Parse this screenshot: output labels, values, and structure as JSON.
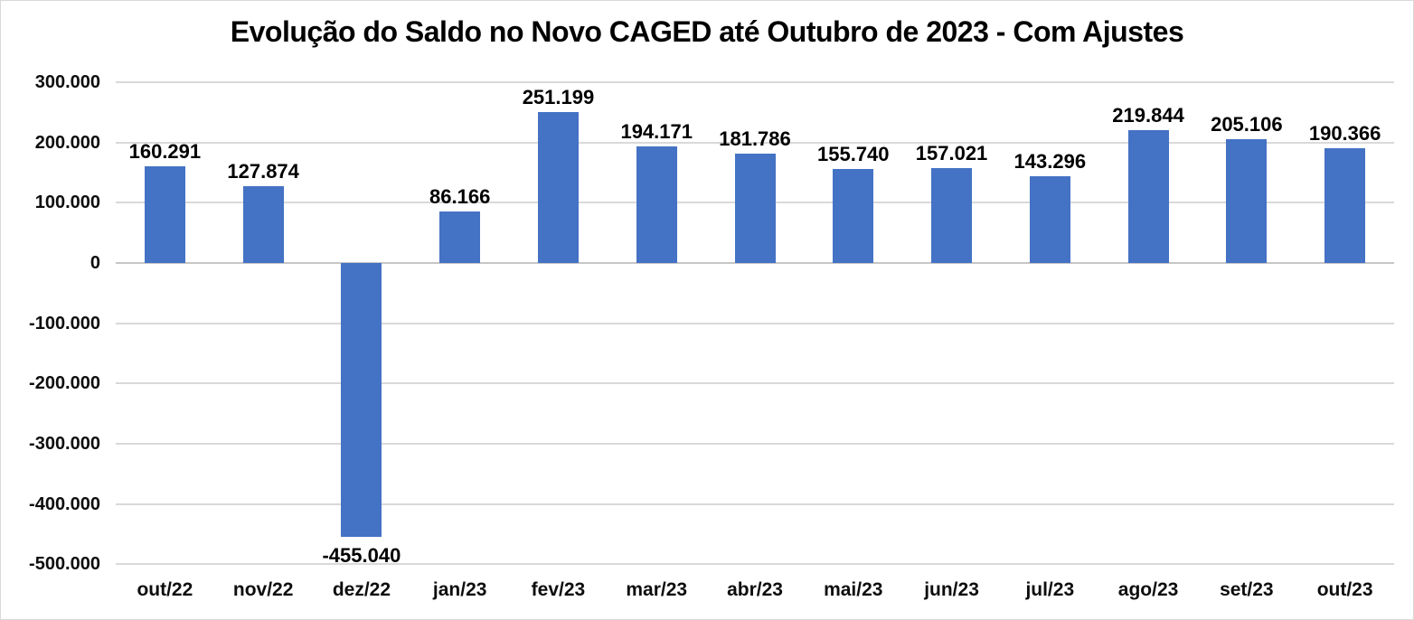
{
  "chart_data": {
    "type": "bar",
    "title": "Evolução do Saldo no Novo CAGED até Outubro de 2023 - Com Ajustes",
    "categories": [
      "out/22",
      "nov/22",
      "dez/22",
      "jan/23",
      "fev/23",
      "mar/23",
      "abr/23",
      "mai/23",
      "jun/23",
      "jul/23",
      "ago/23",
      "set/23",
      "out/23"
    ],
    "values": [
      160291,
      127874,
      -455040,
      86166,
      251199,
      194171,
      181786,
      155740,
      157021,
      143296,
      219844,
      205106,
      190366
    ],
    "value_labels": [
      "160.291",
      "127.874",
      "-455.040",
      "86.166",
      "251.199",
      "194.171",
      "181.786",
      "155.740",
      "157.021",
      "143.296",
      "219.844",
      "205.106",
      "190.366"
    ],
    "xlabel": "",
    "ylabel": "",
    "ylim": [
      -500000,
      300000
    ],
    "y_tick_interval": 100000,
    "y_tick_labels": [
      "300.000",
      "200.000",
      "100.000",
      "0",
      "-100.000",
      "-200.000",
      "-300.000",
      "-400.000",
      "-500.000"
    ],
    "y_tick_values": [
      300000,
      200000,
      100000,
      0,
      -100000,
      -200000,
      -300000,
      -400000,
      -500000
    ],
    "grid": true,
    "legend": false,
    "data_labels_position": "outside-end",
    "colors": {
      "bar": "#4472C4",
      "gridline": "#d9d9d9",
      "zero_axis": "#c6c6c6",
      "title_text": "#000000",
      "label_text": "#000000",
      "chart_border": "#d9d9d9",
      "background": "#ffffff"
    }
  }
}
